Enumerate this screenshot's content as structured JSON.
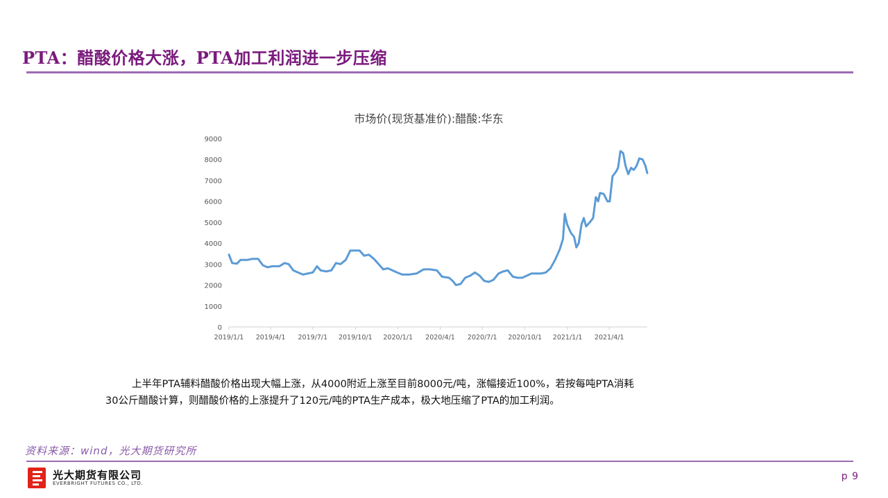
{
  "header": {
    "title": "PTA：醋酸价格大涨，PTA加工利润进一步压缩"
  },
  "chart_data": {
    "type": "line",
    "title": "市场价(现货基准价):醋酸:华东",
    "ylim": [
      0,
      9000
    ],
    "yticks": [
      "9000",
      "8000",
      "7000",
      "6000",
      "5000",
      "4000",
      "3000",
      "2000",
      "1000",
      "0"
    ],
    "xticks": [
      "2019/1/1",
      "2019/4/1",
      "2019/7/1",
      "2019/10/1",
      "2020/1/1",
      "2020/4/1",
      "2020/7/1",
      "2020/10/1",
      "2021/1/1",
      "2021/4/1"
    ],
    "grid": false,
    "legend": "none",
    "color": "#5b9bd5",
    "series": [
      {
        "points": [
          [
            "2019-01-01",
            3450
          ],
          [
            "2019-01-08",
            3050
          ],
          [
            "2019-01-18",
            3020
          ],
          [
            "2019-01-26",
            3200
          ],
          [
            "2019-02-10",
            3200
          ],
          [
            "2019-02-20",
            3250
          ],
          [
            "2019-03-05",
            3250
          ],
          [
            "2019-03-15",
            2950
          ],
          [
            "2019-03-25",
            2850
          ],
          [
            "2019-04-05",
            2900
          ],
          [
            "2019-04-20",
            2900
          ],
          [
            "2019-05-01",
            3050
          ],
          [
            "2019-05-10",
            3000
          ],
          [
            "2019-05-20",
            2700
          ],
          [
            "2019-05-30",
            2600
          ],
          [
            "2019-06-10",
            2500
          ],
          [
            "2019-06-20",
            2550
          ],
          [
            "2019-07-01",
            2600
          ],
          [
            "2019-07-10",
            2900
          ],
          [
            "2019-07-18",
            2700
          ],
          [
            "2019-07-30",
            2650
          ],
          [
            "2019-08-10",
            2700
          ],
          [
            "2019-08-20",
            3050
          ],
          [
            "2019-08-30",
            3000
          ],
          [
            "2019-09-10",
            3200
          ],
          [
            "2019-09-20",
            3650
          ],
          [
            "2019-09-30",
            3650
          ],
          [
            "2019-10-10",
            3650
          ],
          [
            "2019-10-20",
            3400
          ],
          [
            "2019-10-30",
            3450
          ],
          [
            "2019-11-10",
            3250
          ],
          [
            "2019-11-20",
            3000
          ],
          [
            "2019-11-30",
            2750
          ],
          [
            "2019-12-10",
            2800
          ],
          [
            "2019-12-20",
            2700
          ],
          [
            "2019-12-30",
            2600
          ],
          [
            "2020-01-10",
            2500
          ],
          [
            "2020-01-25",
            2500
          ],
          [
            "2020-02-10",
            2550
          ],
          [
            "2020-02-25",
            2750
          ],
          [
            "2020-03-10",
            2750
          ],
          [
            "2020-03-25",
            2700
          ],
          [
            "2020-04-05",
            2400
          ],
          [
            "2020-04-20",
            2350
          ],
          [
            "2020-04-28",
            2200
          ],
          [
            "2020-05-05",
            2000
          ],
          [
            "2020-05-15",
            2050
          ],
          [
            "2020-05-25",
            2350
          ],
          [
            "2020-06-05",
            2450
          ],
          [
            "2020-06-15",
            2600
          ],
          [
            "2020-06-25",
            2450
          ],
          [
            "2020-07-05",
            2200
          ],
          [
            "2020-07-15",
            2150
          ],
          [
            "2020-07-25",
            2250
          ],
          [
            "2020-08-05",
            2550
          ],
          [
            "2020-08-15",
            2650
          ],
          [
            "2020-08-25",
            2700
          ],
          [
            "2020-09-05",
            2400
          ],
          [
            "2020-09-15",
            2350
          ],
          [
            "2020-09-25",
            2350
          ],
          [
            "2020-10-05",
            2450
          ],
          [
            "2020-10-15",
            2550
          ],
          [
            "2020-10-25",
            2550
          ],
          [
            "2020-11-05",
            2550
          ],
          [
            "2020-11-15",
            2600
          ],
          [
            "2020-11-25",
            2800
          ],
          [
            "2020-12-05",
            3200
          ],
          [
            "2020-12-15",
            3700
          ],
          [
            "2020-12-22",
            4200
          ],
          [
            "2020-12-26",
            5400
          ],
          [
            "2020-12-31",
            4900
          ],
          [
            "2021-01-08",
            4500
          ],
          [
            "2021-01-15",
            4300
          ],
          [
            "2021-01-20",
            3800
          ],
          [
            "2021-01-25",
            4000
          ],
          [
            "2021-01-31",
            4900
          ],
          [
            "2021-02-05",
            5200
          ],
          [
            "2021-02-10",
            4800
          ],
          [
            "2021-02-18",
            5000
          ],
          [
            "2021-02-25",
            5200
          ],
          [
            "2021-03-03",
            6200
          ],
          [
            "2021-03-08",
            6000
          ],
          [
            "2021-03-12",
            6400
          ],
          [
            "2021-03-20",
            6350
          ],
          [
            "2021-03-28",
            6000
          ],
          [
            "2021-04-02",
            6000
          ],
          [
            "2021-04-08",
            7200
          ],
          [
            "2021-04-15",
            7400
          ],
          [
            "2021-04-20",
            7600
          ],
          [
            "2021-04-25",
            8400
          ],
          [
            "2021-05-01",
            8300
          ],
          [
            "2021-05-06",
            7700
          ],
          [
            "2021-05-12",
            7300
          ],
          [
            "2021-05-18",
            7600
          ],
          [
            "2021-05-24",
            7500
          ],
          [
            "2021-05-30",
            7700
          ],
          [
            "2021-06-05",
            8050
          ],
          [
            "2021-06-12",
            8000
          ],
          [
            "2021-06-18",
            7700
          ],
          [
            "2021-06-22",
            7350
          ]
        ]
      }
    ]
  },
  "body": {
    "line1": "上半年PTA辅料醋酸价格出现大幅上涨，从4000附近上涨至目前8000元/吨，涨幅接近100%，若按每吨PTA消耗",
    "line2": "30公斤醋酸计算，则醋酸价格的上涨提升了120元/吨的PTA生产成本，极大地压缩了PTA的加工利润。"
  },
  "footer": {
    "source": "资料来源：wind，光大期货研究所",
    "company_cn": "光大期货有限公司",
    "company_en": "EVERBRIGHT FUTURES CO., LTD.",
    "page": "p 9"
  }
}
